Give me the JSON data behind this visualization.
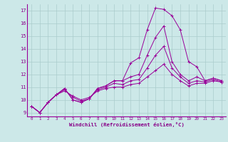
{
  "xlabel": "Windchill (Refroidissement éolien,°C)",
  "bg_color": "#cce8e8",
  "line_color": "#990099",
  "grid_color": "#aacccc",
  "text_color": "#880088",
  "xlim": [
    -0.5,
    23.5
  ],
  "ylim": [
    8.7,
    17.5
  ],
  "xticks": [
    0,
    1,
    2,
    3,
    4,
    5,
    6,
    7,
    8,
    9,
    10,
    11,
    12,
    13,
    14,
    15,
    16,
    17,
    18,
    19,
    20,
    21,
    22,
    23
  ],
  "yticks": [
    9,
    10,
    11,
    12,
    13,
    14,
    15,
    16,
    17
  ],
  "series": [
    [
      9.5,
      9.0,
      9.8,
      10.4,
      10.9,
      10.0,
      9.8,
      10.1,
      10.9,
      11.1,
      11.5,
      11.5,
      12.9,
      13.3,
      15.5,
      17.2,
      17.1,
      16.6,
      15.5,
      13.0,
      12.6,
      11.5,
      11.7,
      11.5
    ],
    [
      9.5,
      9.0,
      9.8,
      10.4,
      10.9,
      10.0,
      9.8,
      10.1,
      10.9,
      11.1,
      11.5,
      11.5,
      11.8,
      12.0,
      13.5,
      14.9,
      15.8,
      13.0,
      12.0,
      11.5,
      11.8,
      11.5,
      11.7,
      11.5
    ],
    [
      9.5,
      9.0,
      9.8,
      10.4,
      10.8,
      10.2,
      9.9,
      10.1,
      10.8,
      11.0,
      11.3,
      11.2,
      11.5,
      11.6,
      12.5,
      13.5,
      14.2,
      12.5,
      11.8,
      11.3,
      11.5,
      11.4,
      11.6,
      11.4
    ],
    [
      9.5,
      9.0,
      9.8,
      10.4,
      10.7,
      10.3,
      10.0,
      10.2,
      10.7,
      10.9,
      11.0,
      11.0,
      11.2,
      11.3,
      11.8,
      12.3,
      12.8,
      12.0,
      11.5,
      11.1,
      11.3,
      11.3,
      11.5,
      11.4
    ]
  ]
}
